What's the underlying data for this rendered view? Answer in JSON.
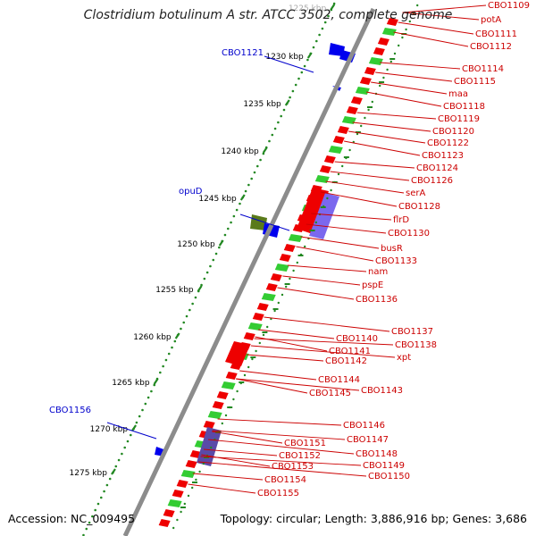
{
  "title": "Clostridium botulinum A str. ATCC 3502, complete genome",
  "footer": {
    "accession": "Accession: NC_009495",
    "summary": "Topology: circular; Length: 3,886,916 bp; Genes: 3,686"
  },
  "ruler": {
    "ticks": [
      "1225 kbp",
      "1230 kbp",
      "1235 kbp",
      "1240 kbp",
      "1245 kbp",
      "1250 kbp",
      "1255 kbp",
      "1260 kbp",
      "1265 kbp",
      "1270 kbp",
      "1275 kbp"
    ]
  },
  "outer_labels": [
    {
      "text": "CBO1121",
      "color": "#0000cc"
    },
    {
      "text": "opuD",
      "color": "#0000cc"
    },
    {
      "text": "CBO1156",
      "color": "#0000cc"
    }
  ],
  "inner_labels": [
    "CBO1109",
    "potA",
    "CBO1111",
    "CBO1112",
    "CBO1114",
    "CBO1115",
    "maa",
    "CBO1118",
    "CBO1119",
    "CBO1120",
    "CBO1122",
    "CBO1123",
    "CBO1124",
    "CBO1126",
    "serA",
    "CBO1128",
    "flrD",
    "CBO1130",
    "busR",
    "CBO1133",
    "nam",
    "pspE",
    "CBO1136",
    "CBO1137",
    "CBO1138",
    "CBO1140",
    "xpt",
    "CBO1141",
    "CBO1142",
    "CBO1144",
    "CBO1143",
    "CBO1145",
    "CBO1146",
    "CBO1147",
    "CBO1151",
    "CBO1148",
    "CBO1152",
    "CBO1149",
    "CBO1153",
    "CBO1150",
    "CBO1154",
    "CBO1155"
  ],
  "colors": {
    "gene_red": "#ee0000",
    "gene_blue": "#0000ee",
    "label_red": "#cc0000",
    "label_blue": "#0000cc",
    "backbone": "#888888",
    "tick_green": "#228822"
  }
}
